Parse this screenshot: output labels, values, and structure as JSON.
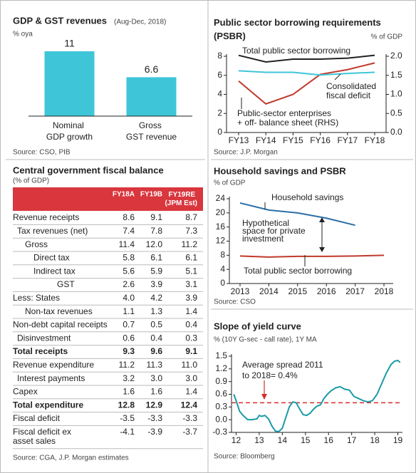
{
  "chart_data": [
    {
      "type": "bar",
      "title": "GDP & GST revenues",
      "subtitle": "(Aug-Dec, 2018)",
      "ylabel": "% oya",
      "categories": [
        "Nominal\nGDP growth",
        "Gross\nGST revenue"
      ],
      "values": [
        11,
        6.6
      ],
      "color": "#3ec6d8",
      "ylim": [
        0,
        11
      ],
      "source": "Source: CSO, PIB"
    },
    {
      "type": "line",
      "title": "Public sector borrowing requirements\n(PSBR)",
      "ylabel": "% of GDP",
      "categories": [
        "FY13",
        "FY14",
        "FY15",
        "FY16",
        "FY17",
        "FY18"
      ],
      "ylim": [
        0,
        8
      ],
      "yticks": [
        0,
        2,
        4,
        6,
        8
      ],
      "y2lim": [
        0,
        2
      ],
      "y2ticks": [
        {
          "value": 0,
          "label": "0.0"
        },
        0.5,
        {
          "value": 1,
          "label": "1.0"
        },
        1.5,
        {
          "value": 2,
          "label": "2.0"
        }
      ],
      "series": [
        {
          "name": "Total public sector borrowing",
          "color": "#222222",
          "values": [
            8.1,
            7.4,
            7.7,
            7.7,
            7.8,
            8.1
          ]
        },
        {
          "name": "Consolidated\nfiscal deficit",
          "color": "#c0392b",
          "values": [
            5.4,
            3.0,
            4.0,
            6.1,
            6.6,
            7.3
          ]
        },
        {
          "name": "Public-sector enterprises\n+ off- balance sheet (RHS)",
          "color": "#3ec6d8",
          "axis": "y2",
          "values": [
            1.62,
            1.58,
            1.58,
            1.51,
            1.55,
            1.58
          ]
        }
      ],
      "source": "Source: J.P. Morgan"
    },
    {
      "type": "line",
      "title": "Household savings and PSBR",
      "ylabel": "% of GDP",
      "categories": [
        "2013",
        "2014",
        "2015",
        "2016",
        "2017",
        "2018"
      ],
      "ylim": [
        0,
        24
      ],
      "yticks": [
        0,
        4,
        8,
        12,
        16,
        20,
        24
      ],
      "series": [
        {
          "name": "Household savings",
          "color": "#2a6fa8",
          "values": [
            22.8,
            20.8,
            20.0,
            18.5,
            16.5,
            null
          ]
        },
        {
          "name": "Total public sector borrowing",
          "color": "#c0392b",
          "values": [
            7.8,
            7.5,
            7.7,
            7.7,
            7.8,
            8.0
          ]
        }
      ],
      "annotation": "Hypothetical\nspace for private\ninvestment",
      "source": "Source: CSO"
    },
    {
      "type": "line",
      "title": "Slope of yield curve",
      "subtitle": "% (10Y G-sec - call rate), 1Y MA",
      "x": [
        11.9,
        12.0,
        12.15,
        12.3,
        12.5,
        12.7,
        12.9,
        13.0,
        13.1,
        13.25,
        13.4,
        13.55,
        13.7,
        13.85,
        14.0,
        14.15,
        14.3,
        14.45,
        14.6,
        14.75,
        14.9,
        15.05,
        15.2,
        15.35,
        15.5,
        15.65,
        15.8,
        15.95,
        16.1,
        16.3,
        16.5,
        16.7,
        16.9,
        17.1,
        17.3,
        17.5,
        17.7,
        17.9,
        18.1,
        18.3,
        18.5,
        18.7,
        18.85,
        19.0,
        19.1
      ],
      "values": [
        0.6,
        0.45,
        0.2,
        0.1,
        0.0,
        0.0,
        0.02,
        0.1,
        0.08,
        0.1,
        0.02,
        -0.15,
        -0.27,
        -0.28,
        -0.2,
        0.05,
        0.3,
        0.42,
        0.4,
        0.25,
        0.12,
        0.1,
        0.15,
        0.25,
        0.32,
        0.35,
        0.5,
        0.6,
        0.68,
        0.75,
        0.78,
        0.72,
        0.7,
        0.55,
        0.5,
        0.45,
        0.42,
        0.45,
        0.6,
        0.85,
        1.1,
        1.3,
        1.38,
        1.4,
        1.35
      ],
      "color": "#1a9aa8",
      "xlim": [
        11.8,
        19.2
      ],
      "xticks": [
        12,
        13,
        14,
        15,
        16,
        17,
        18,
        19
      ],
      "ylim": [
        -0.3,
        1.5
      ],
      "yticks": [
        -0.3,
        {
          "value": 0,
          "label": "0.0"
        },
        0.3,
        0.6,
        0.9,
        1.2,
        1.5
      ],
      "average": 0.4,
      "average_color": "#d62b2b",
      "annotation": "Average spread 2011\nto 2018= 0.4%",
      "source": "Source: Bloomberg"
    }
  ],
  "table": {
    "title": "Central government fiscal balance",
    "subtitle": "(% of GDP)",
    "columns": [
      "FY18A",
      "FY19B",
      "FY19RE\n(JPM Est)"
    ],
    "rows": [
      [
        "Revenue receipts",
        "8.6",
        "9.1",
        "8.7"
      ],
      [
        "Tax revenues (net)",
        "7.4",
        "7.8",
        "7.3"
      ],
      [
        "Gross",
        "11.4",
        "12.0",
        "11.2"
      ],
      [
        "Direct tax",
        "5.8",
        "6.1",
        "6.1"
      ],
      [
        "Indirect tax",
        "5.6",
        "5.9",
        "5.1"
      ],
      [
        "GST",
        "2.6",
        "3.9",
        "3.1"
      ],
      [
        "Less: States",
        "4.0",
        "4.2",
        "3.9"
      ],
      [
        "Non-tax revenues",
        "1.1",
        "1.3",
        "1.4"
      ],
      [
        "Non-debt capital receipts",
        "0.7",
        "0.5",
        "0.4"
      ],
      [
        "Disinvestment",
        "0.6",
        "0.4",
        "0.3"
      ],
      [
        "Total receipts",
        "9.3",
        "9.6",
        "9.1"
      ],
      [
        "Revenue expenditure",
        "11.2",
        "11.3",
        "11.0"
      ],
      [
        "Interest payments",
        "3.2",
        "3.0",
        "3.0"
      ],
      [
        "Capex",
        "1.6",
        "1.6",
        "1.4"
      ],
      [
        "Total expenditure",
        "12.8",
        "12.9",
        "12.4"
      ],
      [
        "Fiscal deficit",
        "-3.5",
        "-3.3",
        "-3.3"
      ],
      [
        "Fiscal deficit ex\nasset sales",
        "-4.1",
        "-3.9",
        "-3.7"
      ]
    ],
    "source": "Source: CGA, J.P. Morgan estimates"
  }
}
